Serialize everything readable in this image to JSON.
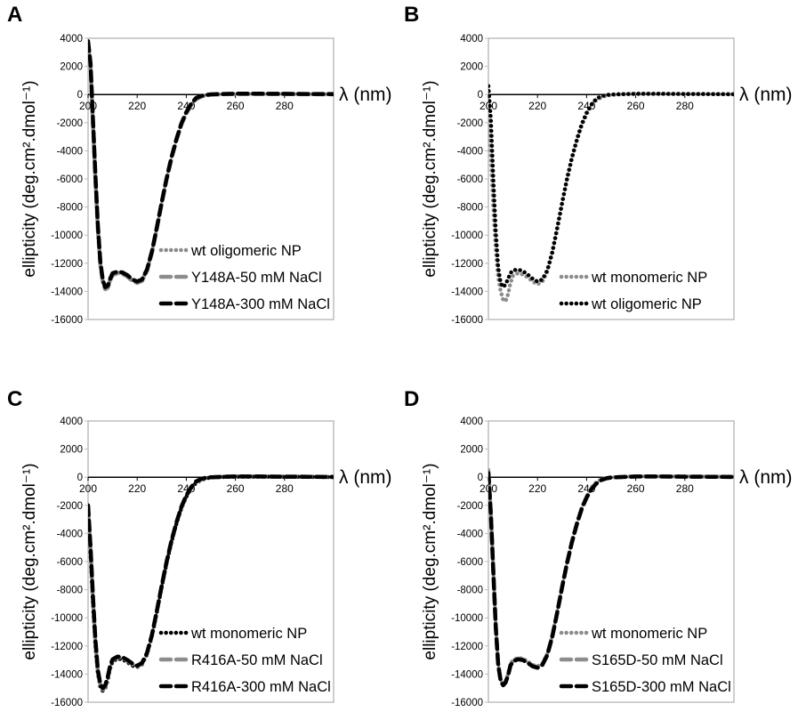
{
  "chart_data": [
    {
      "panel": "A",
      "type": "line",
      "xlabel": "λ (nm)",
      "ylabel": "ellipticity (deg.cm².dmol⁻¹)",
      "xlim": [
        200,
        300
      ],
      "ylim": [
        -16000,
        4000
      ],
      "xticks": [
        "200",
        "220",
        "240",
        "260",
        "280"
      ],
      "yticks": [
        "4000",
        "2000",
        "0",
        "-2000",
        "-4000",
        "-6000",
        "-8000",
        "-10000",
        "-12000",
        "-14000",
        "-16000"
      ],
      "legend_position": "lower-right",
      "series": [
        {
          "name": "wt oligomeric NP",
          "color": "#8c8c8c",
          "style": "dotted",
          "x": [
            200,
            201,
            202,
            203,
            204,
            205,
            206,
            207,
            208,
            209,
            210,
            212,
            214,
            216,
            218,
            220,
            222,
            224,
            226,
            228,
            230,
            232,
            234,
            236,
            238,
            240,
            242,
            244,
            246,
            248,
            250,
            255,
            260,
            270,
            280,
            290,
            300
          ],
          "y": [
            3600,
            2000,
            -2000,
            -6000,
            -9500,
            -12000,
            -13300,
            -13800,
            -13700,
            -13200,
            -12800,
            -12650,
            -12700,
            -12900,
            -13200,
            -13350,
            -13200,
            -12500,
            -11200,
            -9500,
            -7700,
            -6000,
            -4500,
            -3200,
            -2100,
            -1300,
            -700,
            -300,
            -120,
            -40,
            0,
            30,
            50,
            50,
            40,
            30,
            20
          ]
        },
        {
          "name": "Y148A-50 mM NaCl",
          "color": "#8c8c8c",
          "style": "dashed",
          "x": [
            200,
            201,
            202,
            203,
            204,
            205,
            206,
            207,
            208,
            209,
            210,
            212,
            214,
            216,
            218,
            220,
            222,
            224,
            226,
            228,
            230,
            232,
            234,
            236,
            238,
            240,
            242,
            244,
            246,
            248,
            250,
            255,
            260,
            270,
            280,
            290,
            300
          ],
          "y": [
            3500,
            1900,
            -2100,
            -6100,
            -9600,
            -12100,
            -13350,
            -13850,
            -13750,
            -13250,
            -12850,
            -12700,
            -12750,
            -12950,
            -13250,
            -13400,
            -13250,
            -12550,
            -11250,
            -9550,
            -7750,
            -6050,
            -4550,
            -3250,
            -2150,
            -1350,
            -750,
            -350,
            -150,
            -60,
            -10,
            20,
            40,
            40,
            30,
            20,
            10
          ]
        },
        {
          "name": "Y148A-300 mM NaCl",
          "color": "#000000",
          "style": "dashed",
          "x": [
            200,
            201,
            202,
            203,
            204,
            205,
            206,
            207,
            208,
            209,
            210,
            212,
            214,
            216,
            218,
            220,
            222,
            224,
            226,
            228,
            230,
            232,
            234,
            236,
            238,
            240,
            242,
            244,
            246,
            248,
            250,
            255,
            260,
            270,
            280,
            290,
            300
          ],
          "y": [
            3800,
            2200,
            -1800,
            -5800,
            -9300,
            -11900,
            -13200,
            -13700,
            -13600,
            -13100,
            -12700,
            -12600,
            -12650,
            -12850,
            -13150,
            -13300,
            -13150,
            -12450,
            -11150,
            -9450,
            -7650,
            -5950,
            -4450,
            -3150,
            -2050,
            -1250,
            -650,
            -250,
            -100,
            -30,
            10,
            40,
            60,
            60,
            50,
            40,
            30
          ]
        }
      ]
    },
    {
      "panel": "B",
      "type": "line",
      "xlabel": "λ (nm)",
      "ylabel": "ellipticity (deg.cm².dmol⁻¹)",
      "xlim": [
        200,
        300
      ],
      "ylim": [
        -16000,
        4000
      ],
      "xticks": [
        "200",
        "220",
        "240",
        "260",
        "280"
      ],
      "yticks": [
        "4000",
        "2000",
        "0",
        "-2000",
        "-4000",
        "-6000",
        "-8000",
        "-10000",
        "-12000",
        "-14000",
        "-16000"
      ],
      "legend_position": "lower-right",
      "series": [
        {
          "name": "wt monomeric NP",
          "color": "#8c8c8c",
          "style": "dotted",
          "x": [
            200,
            201,
            202,
            203,
            204,
            205,
            206,
            207,
            208,
            209,
            210,
            212,
            214,
            216,
            218,
            220,
            222,
            224,
            226,
            228,
            230,
            232,
            234,
            236,
            238,
            240,
            242,
            244,
            246,
            248,
            250,
            255,
            260,
            270,
            280,
            290,
            300
          ],
          "y": [
            -1500,
            -4500,
            -8000,
            -11000,
            -13000,
            -14000,
            -14600,
            -14700,
            -14200,
            -13400,
            -12900,
            -12700,
            -12800,
            -13000,
            -13300,
            -13500,
            -13300,
            -12600,
            -11300,
            -9600,
            -7800,
            -6100,
            -4600,
            -3300,
            -2200,
            -1400,
            -800,
            -400,
            -200,
            -80,
            -20,
            20,
            50,
            50,
            40,
            30,
            20
          ]
        },
        {
          "name": "wt oligomeric NP",
          "color": "#000000",
          "style": "dotted",
          "x": [
            200,
            201,
            202,
            203,
            204,
            205,
            206,
            207,
            208,
            209,
            210,
            212,
            214,
            216,
            218,
            220,
            222,
            224,
            226,
            228,
            230,
            232,
            234,
            236,
            238,
            240,
            242,
            244,
            246,
            248,
            250,
            255,
            260,
            270,
            280,
            290,
            300
          ],
          "y": [
            600,
            -1800,
            -6000,
            -9800,
            -12300,
            -13400,
            -13700,
            -13500,
            -13100,
            -12700,
            -12500,
            -12450,
            -12550,
            -12800,
            -13100,
            -13300,
            -13150,
            -12500,
            -11200,
            -9500,
            -7700,
            -6000,
            -4500,
            -3200,
            -2100,
            -1300,
            -700,
            -300,
            -120,
            -40,
            0,
            30,
            50,
            50,
            40,
            30,
            20
          ]
        }
      ]
    },
    {
      "panel": "C",
      "type": "line",
      "xlabel": "λ (nm)",
      "ylabel": "ellipticity (deg.cm².dmol⁻¹)",
      "xlim": [
        200,
        300
      ],
      "ylim": [
        -16000,
        4000
      ],
      "xticks": [
        "200",
        "220",
        "240",
        "260",
        "280"
      ],
      "yticks": [
        "4000",
        "2000",
        "0",
        "-2000",
        "-4000",
        "-6000",
        "-8000",
        "-10000",
        "-12000",
        "-14000",
        "-16000"
      ],
      "legend_position": "lower-right",
      "series": [
        {
          "name": "wt monomeric NP",
          "color": "#000000",
          "style": "dotted",
          "x": [
            200,
            201,
            202,
            203,
            204,
            205,
            206,
            207,
            208,
            209,
            210,
            212,
            214,
            216,
            218,
            220,
            222,
            224,
            226,
            228,
            230,
            232,
            234,
            236,
            238,
            240,
            242,
            244,
            246,
            248,
            250,
            255,
            260,
            270,
            280,
            290,
            300
          ],
          "y": [
            -2500,
            -5500,
            -9000,
            -12000,
            -14000,
            -14900,
            -15200,
            -15000,
            -14400,
            -13600,
            -13100,
            -12900,
            -12950,
            -13150,
            -13400,
            -13500,
            -13300,
            -12600,
            -11300,
            -9600,
            -7800,
            -6100,
            -4600,
            -3300,
            -2200,
            -1400,
            -800,
            -400,
            -200,
            -80,
            -20,
            20,
            40,
            40,
            30,
            20,
            10
          ]
        },
        {
          "name": "R416A-50 mM NaCl",
          "color": "#8c8c8c",
          "style": "dashed",
          "x": [
            200,
            201,
            202,
            203,
            204,
            205,
            206,
            207,
            208,
            209,
            210,
            212,
            214,
            216,
            218,
            220,
            222,
            224,
            226,
            228,
            230,
            232,
            234,
            236,
            238,
            240,
            242,
            244,
            246,
            248,
            250,
            255,
            260,
            270,
            280,
            290,
            300
          ],
          "y": [
            -2200,
            -5200,
            -8700,
            -11800,
            -13900,
            -14800,
            -15100,
            -14900,
            -14300,
            -13500,
            -13000,
            -12800,
            -12850,
            -13050,
            -13300,
            -13450,
            -13250,
            -12550,
            -11250,
            -9550,
            -7750,
            -6050,
            -4550,
            -3250,
            -2150,
            -1350,
            -750,
            -350,
            -150,
            -60,
            -10,
            30,
            50,
            50,
            40,
            30,
            20
          ]
        },
        {
          "name": "R416A-300 mM NaCl",
          "color": "#000000",
          "style": "dashed",
          "x": [
            200,
            201,
            202,
            203,
            204,
            205,
            206,
            207,
            208,
            209,
            210,
            212,
            214,
            216,
            218,
            220,
            222,
            224,
            226,
            228,
            230,
            232,
            234,
            236,
            238,
            240,
            242,
            244,
            246,
            248,
            250,
            255,
            260,
            270,
            280,
            290,
            300
          ],
          "y": [
            -2000,
            -5000,
            -8500,
            -11600,
            -13700,
            -14700,
            -15000,
            -14800,
            -14200,
            -13400,
            -12950,
            -12750,
            -12800,
            -13000,
            -13250,
            -13400,
            -13200,
            -12500,
            -11200,
            -9500,
            -7700,
            -6000,
            -4500,
            -3200,
            -2100,
            -1300,
            -700,
            -300,
            -120,
            -40,
            0,
            30,
            50,
            50,
            40,
            30,
            20
          ]
        }
      ]
    },
    {
      "panel": "D",
      "type": "line",
      "xlabel": "λ (nm)",
      "ylabel": "ellipticity (deg.cm².dmol⁻¹)",
      "xlim": [
        200,
        300
      ],
      "ylim": [
        -16000,
        4000
      ],
      "xticks": [
        "200",
        "220",
        "240",
        "260",
        "280"
      ],
      "yticks": [
        "4000",
        "2000",
        "0",
        "-2000",
        "-4000",
        "-6000",
        "-8000",
        "-10000",
        "-12000",
        "-14000",
        "-16000"
      ],
      "legend_position": "lower-right",
      "series": [
        {
          "name": "wt monomeric NP",
          "color": "#8c8c8c",
          "style": "dotted",
          "x": [
            200,
            201,
            202,
            203,
            204,
            205,
            206,
            207,
            208,
            209,
            210,
            212,
            214,
            216,
            218,
            220,
            222,
            224,
            226,
            228,
            230,
            232,
            234,
            236,
            238,
            240,
            242,
            244,
            246,
            248,
            250,
            255,
            260,
            270,
            280,
            290,
            300
          ],
          "y": [
            500,
            -2500,
            -6500,
            -10500,
            -13200,
            -14400,
            -14700,
            -14500,
            -14000,
            -13300,
            -13000,
            -12850,
            -12900,
            -13100,
            -13350,
            -13450,
            -13250,
            -12550,
            -11250,
            -9550,
            -7750,
            -6050,
            -4550,
            -3250,
            -2150,
            -1350,
            -750,
            -350,
            -150,
            -60,
            -10,
            30,
            60,
            60,
            50,
            40,
            30
          ]
        },
        {
          "name": "S165D-50 mM NaCl",
          "color": "#8c8c8c",
          "style": "dashed",
          "x": [
            200,
            201,
            202,
            203,
            204,
            205,
            206,
            207,
            208,
            209,
            210,
            212,
            214,
            216,
            218,
            220,
            222,
            224,
            226,
            228,
            230,
            232,
            234,
            236,
            238,
            240,
            242,
            244,
            246,
            248,
            250,
            255,
            260,
            270,
            280,
            290,
            300
          ],
          "y": [
            400,
            -2600,
            -6600,
            -10600,
            -13300,
            -14450,
            -14750,
            -14550,
            -14050,
            -13350,
            -13050,
            -12900,
            -12950,
            -13150,
            -13400,
            -13500,
            -13300,
            -12600,
            -11300,
            -9600,
            -7800,
            -6100,
            -4600,
            -3300,
            -2200,
            -1400,
            -800,
            -400,
            -180,
            -70,
            -20,
            20,
            50,
            50,
            40,
            30,
            20
          ]
        },
        {
          "name": "S165D-300 mM NaCl",
          "color": "#000000",
          "style": "dashed",
          "x": [
            200,
            201,
            202,
            203,
            204,
            205,
            206,
            207,
            208,
            209,
            210,
            212,
            214,
            216,
            218,
            220,
            222,
            224,
            226,
            228,
            230,
            232,
            234,
            236,
            238,
            240,
            242,
            244,
            246,
            248,
            250,
            255,
            260,
            270,
            280,
            290,
            300
          ],
          "y": [
            300,
            -2700,
            -6700,
            -10700,
            -13350,
            -14500,
            -14800,
            -14600,
            -14100,
            -13400,
            -13100,
            -12950,
            -13000,
            -13200,
            -13450,
            -13550,
            -13350,
            -12650,
            -11350,
            -9650,
            -7850,
            -6150,
            -4650,
            -3350,
            -2250,
            -1450,
            -850,
            -450,
            -200,
            -80,
            -20,
            20,
            50,
            50,
            40,
            30,
            20
          ]
        }
      ]
    }
  ]
}
